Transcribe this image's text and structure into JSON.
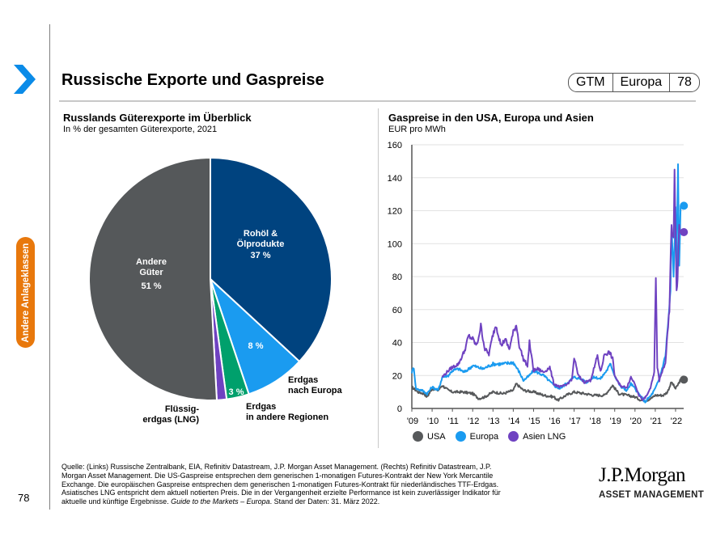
{
  "header": {
    "title": "Russische Exporte und Gaspreise",
    "badge": [
      "GTM",
      "Europa",
      "78"
    ]
  },
  "sidebar": {
    "label": "Andere Anlageklassen"
  },
  "colors": {
    "accent_blue": "#0a8be8",
    "side_orange": "#e8780c",
    "usa": "#57595b",
    "europa": "#1a9bf0",
    "asien": "#6f42c1",
    "rohoel": "#00437f",
    "erdgas_europa": "#1a9bf0",
    "erdgas_andere": "#00a06c",
    "lng": "#6f42c1",
    "andere": "#55585a"
  },
  "footer": {
    "source_text": "Quelle: (Links) Russische Zentralbank, EIA, Refinitiv Datastream, J.P. Morgan Asset Management. (Rechts) Refinitiv Datastream, J.P. Morgan Asset Management. Die US-Gaspreise entsprechen dem generischen 1-monatigen Futures-Kontrakt der New York Mercantile Exchange. Die europäischen Gaspreise entsprechen dem generischen 1-monatigen Futures-Kontrakt für niederländisches TTF-Erdgas. Asiatisches LNG entspricht dem aktuell notierten Preis. Die in der Vergangenheit erzielte Performance ist kein zuverlässiger Indikator für aktuelle und künftige Ergebnisse. ",
    "source_italic": "Guide to the Markets – Europa",
    "source_end": ". Stand der Daten: 31. März 2022.",
    "page_number": "78",
    "logo_main": "J.P.Morgan",
    "logo_sub": "ASSET MANAGEMENT"
  },
  "chart_data": [
    {
      "type": "pie",
      "title": "Russlands Güterexporte im Überblick",
      "subtitle": "In % der gesamten Güterexporte, 2021",
      "slices": [
        {
          "label": "Rohöl & Ölprodukte",
          "label_lines": [
            "Rohöl &",
            "Ölprodukte"
          ],
          "value": 37,
          "value_label": "37 %",
          "color": "#00437f",
          "label_inside": true
        },
        {
          "label": "Erdgas nach Europa",
          "label_lines": [
            "Erdgas",
            "nach Europa"
          ],
          "value": 8,
          "value_label": "8 %",
          "color": "#1a9bf0",
          "label_inside": false
        },
        {
          "label": "Erdgas in andere Regionen",
          "label_lines": [
            "Erdgas",
            "in andere Regionen"
          ],
          "value": 3,
          "value_label": "3 %",
          "color": "#00a06c",
          "label_inside": false
        },
        {
          "label": "Flüssigerdgas (LNG)",
          "label_lines": [
            "Flüssig-",
            "erdgas (LNG)"
          ],
          "value": 1.3,
          "value_label": "",
          "color": "#6f42c1",
          "label_inside": false
        },
        {
          "label": "Andere Güter",
          "label_lines": [
            "Andere",
            "Güter"
          ],
          "value": 51,
          "value_label": "51 %",
          "color": "#55585a",
          "label_inside": true
        }
      ]
    },
    {
      "type": "line",
      "title": "Gaspreise in den USA, Europa und Asien",
      "ylabel": "EUR pro MWh",
      "ylim": [
        0,
        160
      ],
      "yticks": [
        0,
        20,
        40,
        60,
        80,
        100,
        120,
        140,
        160
      ],
      "xlim": [
        2009,
        2022.4
      ],
      "xticks": [
        2009,
        2010,
        2011,
        2012,
        2013,
        2014,
        2015,
        2016,
        2017,
        2018,
        2019,
        2020,
        2021,
        2022
      ],
      "xtick_labels": [
        "'09",
        "'10",
        "'11",
        "'12",
        "'13",
        "'14",
        "'15",
        "'16",
        "'17",
        "'18",
        "'19",
        "'20",
        "'21",
        "'22"
      ],
      "grid": "horizontal",
      "legend": "bottom-left",
      "series": [
        {
          "name": "USA",
          "color": "#57595b",
          "x": [
            2009,
            2009.3,
            2009.6,
            2009.75,
            2010,
            2010.3,
            2010.5,
            2010.8,
            2011,
            2011.5,
            2012,
            2012.3,
            2012.6,
            2013,
            2013.5,
            2014,
            2014.15,
            2014.5,
            2015,
            2015.5,
            2016,
            2016.2,
            2016.6,
            2017,
            2017.5,
            2018,
            2018.5,
            2018.9,
            2019.2,
            2019.6,
            2020,
            2020.3,
            2020.6,
            2020.9,
            2021,
            2021.4,
            2021.6,
            2021.8,
            2022,
            2022.1,
            2022.25
          ],
          "y": [
            13,
            10,
            9,
            7,
            12,
            11,
            14,
            11,
            10,
            10,
            9,
            6,
            7,
            10,
            9,
            11,
            15,
            11,
            10,
            8,
            7,
            5,
            8,
            10,
            9,
            8,
            8,
            14,
            9,
            8,
            7,
            5,
            5,
            7,
            8,
            8,
            10,
            16,
            12,
            14,
            17.5
          ],
          "end_marker": 17.5
        },
        {
          "name": "Europa",
          "color": "#1a9bf0",
          "x": [
            2009,
            2009.1,
            2009.2,
            2009.5,
            2009.75,
            2010,
            2010.3,
            2010.5,
            2010.8,
            2011,
            2011.3,
            2011.6,
            2012,
            2012.5,
            2013,
            2013.5,
            2014,
            2014.3,
            2014.5,
            2014.8,
            2015,
            2015.5,
            2016,
            2016.3,
            2016.6,
            2017,
            2017.3,
            2017.6,
            2018,
            2018.3,
            2018.6,
            2018.8,
            2019,
            2019.3,
            2019.6,
            2019.8,
            2020,
            2020.3,
            2020.5,
            2020.8,
            2021,
            2021.2,
            2021.5,
            2021.75,
            2021.8,
            2021.9,
            2022,
            2022.05,
            2022.12,
            2022.18,
            2022.25
          ],
          "y": [
            22,
            25,
            12,
            11,
            9,
            13,
            11,
            19,
            20,
            23,
            24,
            22,
            26,
            24,
            27,
            27,
            28,
            22,
            17,
            20,
            23,
            20,
            14,
            12,
            15,
            19,
            18,
            16,
            19,
            18,
            23,
            27,
            20,
            13,
            11,
            15,
            12,
            7,
            4,
            8,
            12,
            18,
            32,
            70,
            110,
            80,
            120,
            80,
            148,
            90,
            123
          ],
          "end_marker": 123
        },
        {
          "name": "Asien LNG",
          "color": "#6f42c1",
          "x": [
            2010.5,
            2010.8,
            2011,
            2011.3,
            2011.6,
            2011.8,
            2012,
            2012.2,
            2012.4,
            2012.6,
            2012.8,
            2013,
            2013.15,
            2013.4,
            2013.6,
            2013.8,
            2014,
            2014.15,
            2014.3,
            2014.5,
            2014.7,
            2014.8,
            2015,
            2015.2,
            2015.5,
            2015.8,
            2016,
            2016.3,
            2016.6,
            2016.9,
            2017,
            2017.2,
            2017.5,
            2017.8,
            2018,
            2018.15,
            2018.3,
            2018.5,
            2018.75,
            2018.9,
            2019,
            2019.2,
            2019.4,
            2019.6,
            2019.8,
            2020,
            2020.2,
            2020.4,
            2020.6,
            2020.8,
            2020.95,
            2021.03,
            2021.1,
            2021.2,
            2021.5,
            2021.7,
            2021.8,
            2021.9,
            2021.95,
            2022,
            2022.05,
            2022.1,
            2022.18,
            2022.25
          ],
          "y": [
            19,
            23,
            25,
            27,
            35,
            44,
            42,
            38,
            50,
            36,
            33,
            45,
            51,
            38,
            42,
            36,
            46,
            51,
            38,
            30,
            26,
            40,
            23,
            24,
            22,
            25,
            15,
            13,
            14,
            18,
            31,
            20,
            16,
            17,
            25,
            32,
            22,
            33,
            34,
            30,
            20,
            15,
            13,
            13,
            19,
            15,
            8,
            5,
            8,
            14,
            22,
            81,
            25,
            17,
            28,
            60,
            112,
            100,
            146,
            110,
            70,
            80,
            110,
            107
          ],
          "end_marker": 107
        }
      ]
    }
  ]
}
